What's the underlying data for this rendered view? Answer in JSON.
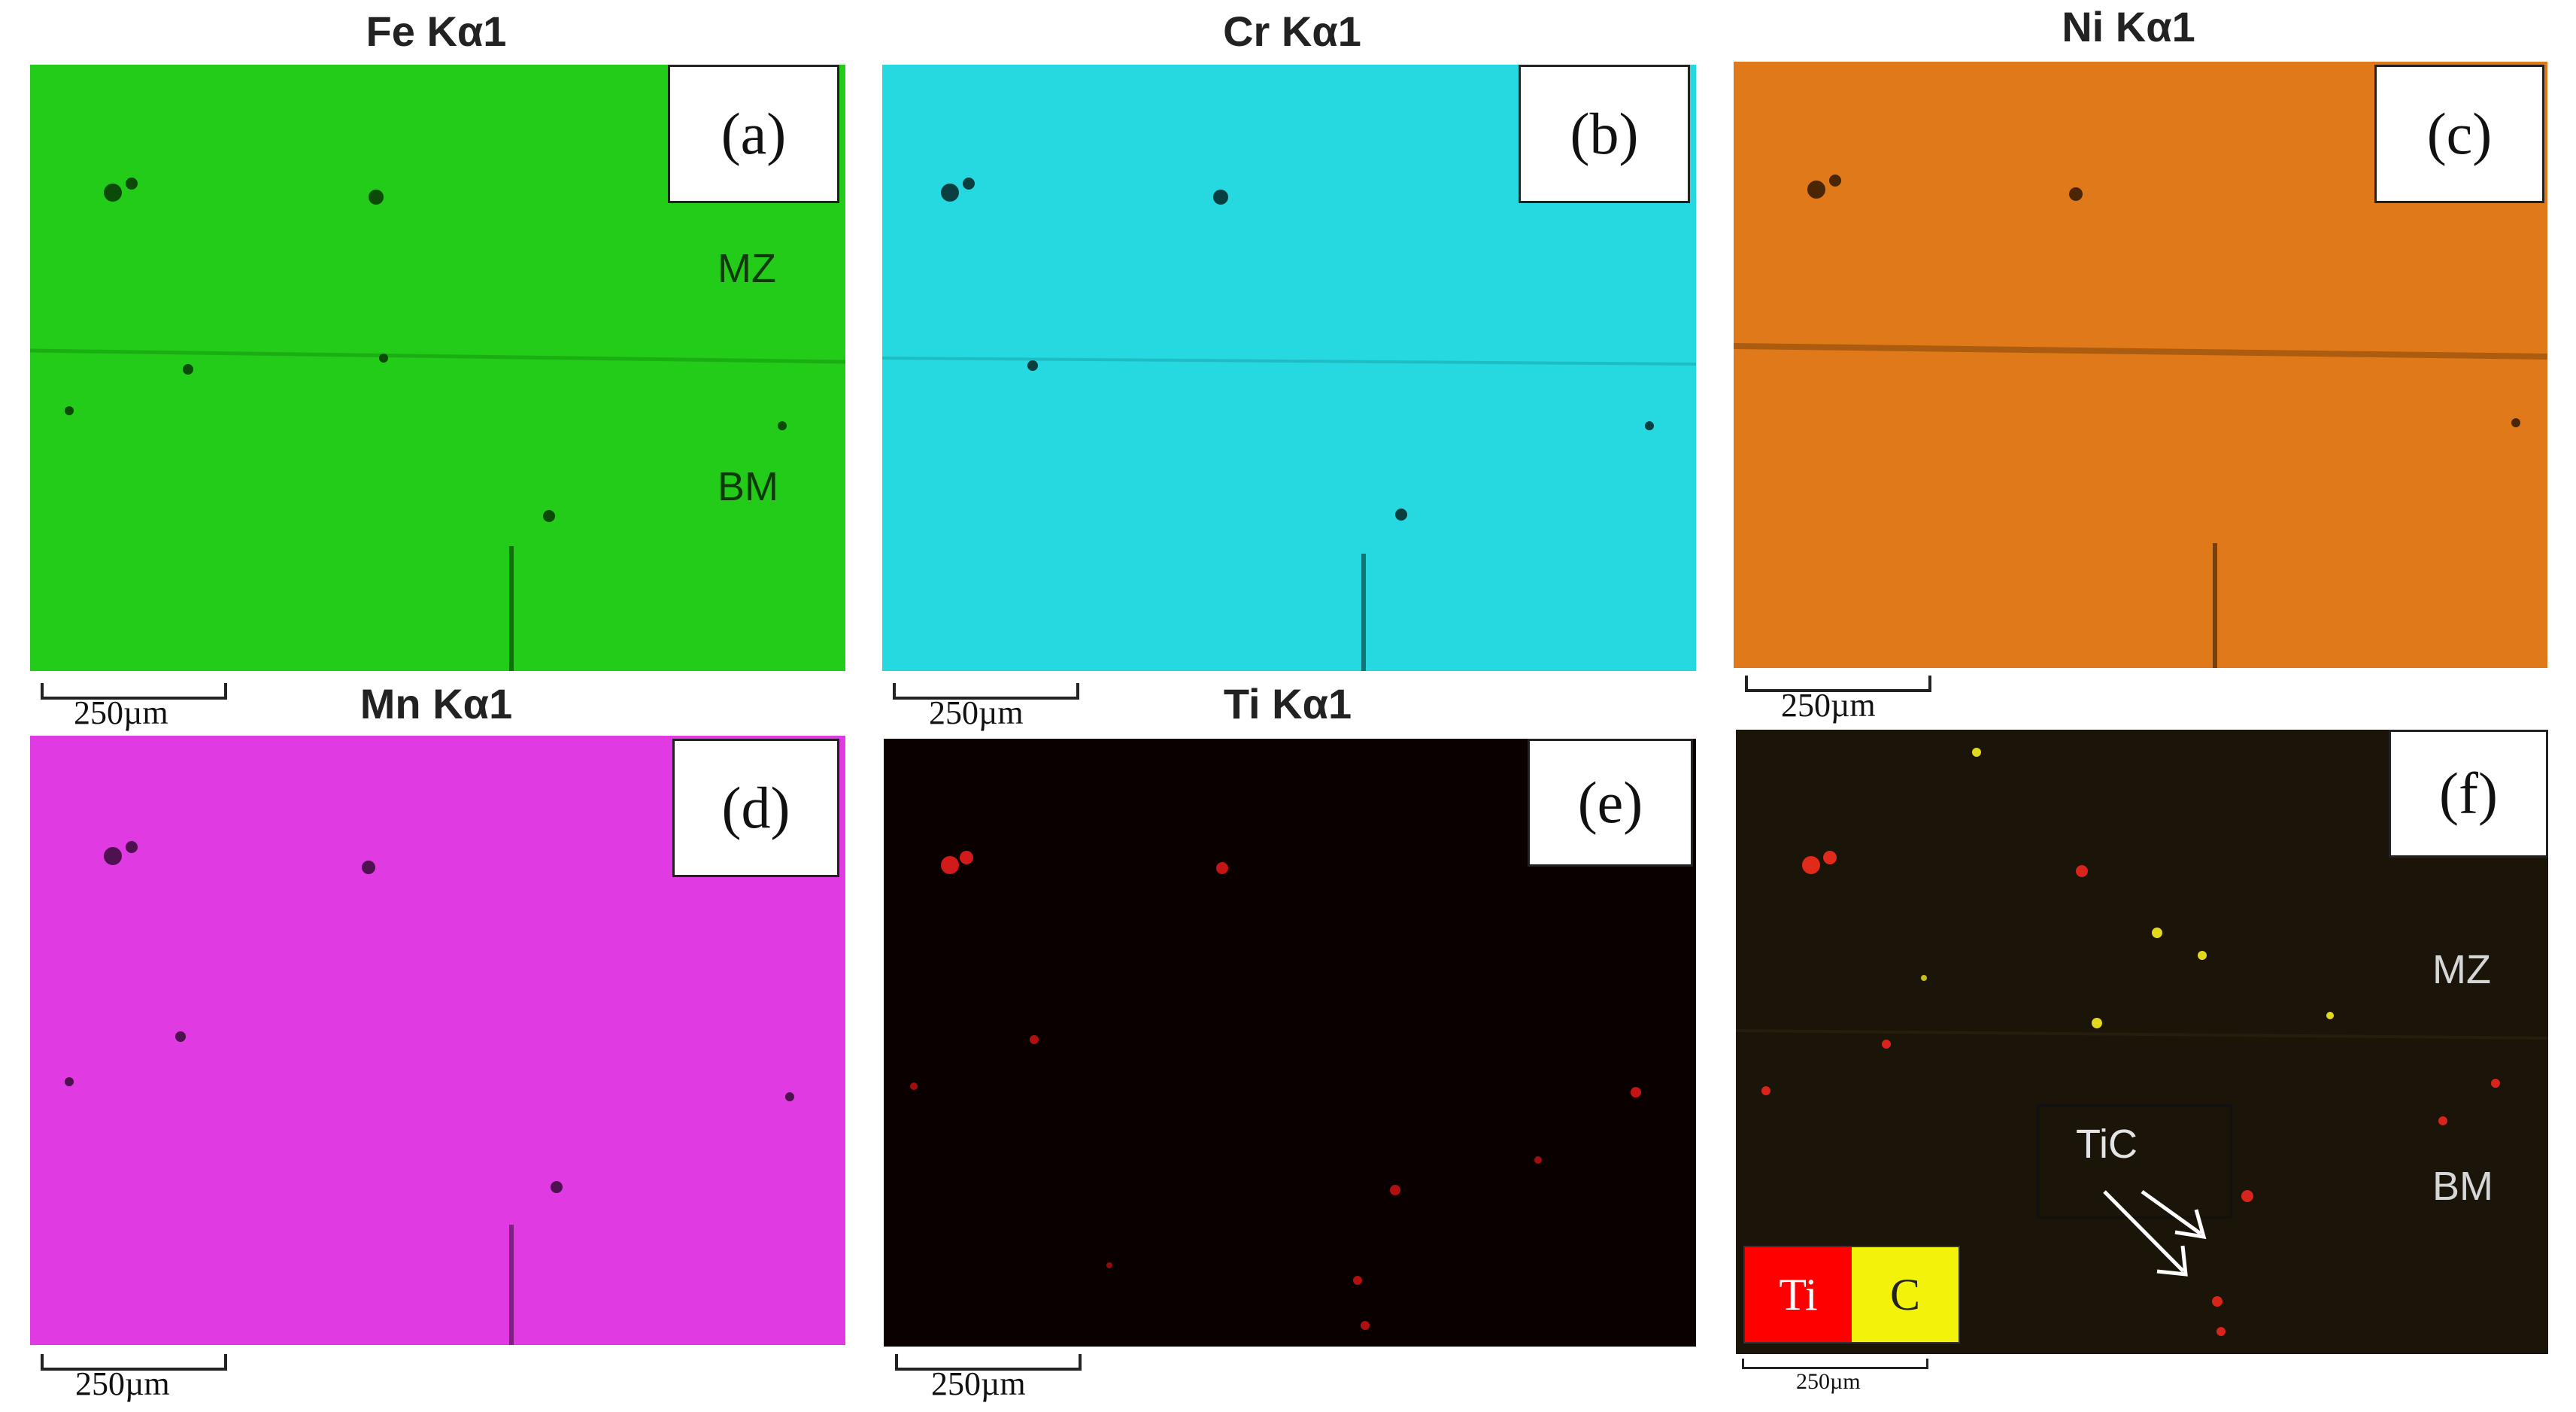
{
  "panels": [
    {
      "id": "a",
      "title": "Fe Kα1",
      "tag": "(a)",
      "color": "#25d21b",
      "scale": "250µm",
      "zones": [
        "MZ",
        "BM"
      ]
    },
    {
      "id": "b",
      "title": "Cr Kα1",
      "tag": "(b)",
      "color": "#28e0e6",
      "scale": "250µm"
    },
    {
      "id": "c",
      "title": "Ni Kα1",
      "tag": "(c)",
      "color": "#e5801b",
      "scale": "250µm"
    },
    {
      "id": "d",
      "title": "Mn Kα1",
      "tag": "(d)",
      "color": "#e33ce6",
      "scale": "250µm"
    },
    {
      "id": "e",
      "title": "Ti Kα1",
      "tag": "(e)",
      "color": "#0a0000",
      "scale": "250µm"
    },
    {
      "id": "f",
      "title": "",
      "tag": "(f)",
      "color": "#1a1508",
      "scale": "250µm",
      "zones": [
        "MZ",
        "BM"
      ],
      "annotation": "TiC",
      "legend": [
        {
          "label": "Ti",
          "color": "#ff0000"
        },
        {
          "label": "C",
          "color": "#f2f20a"
        }
      ]
    }
  ]
}
